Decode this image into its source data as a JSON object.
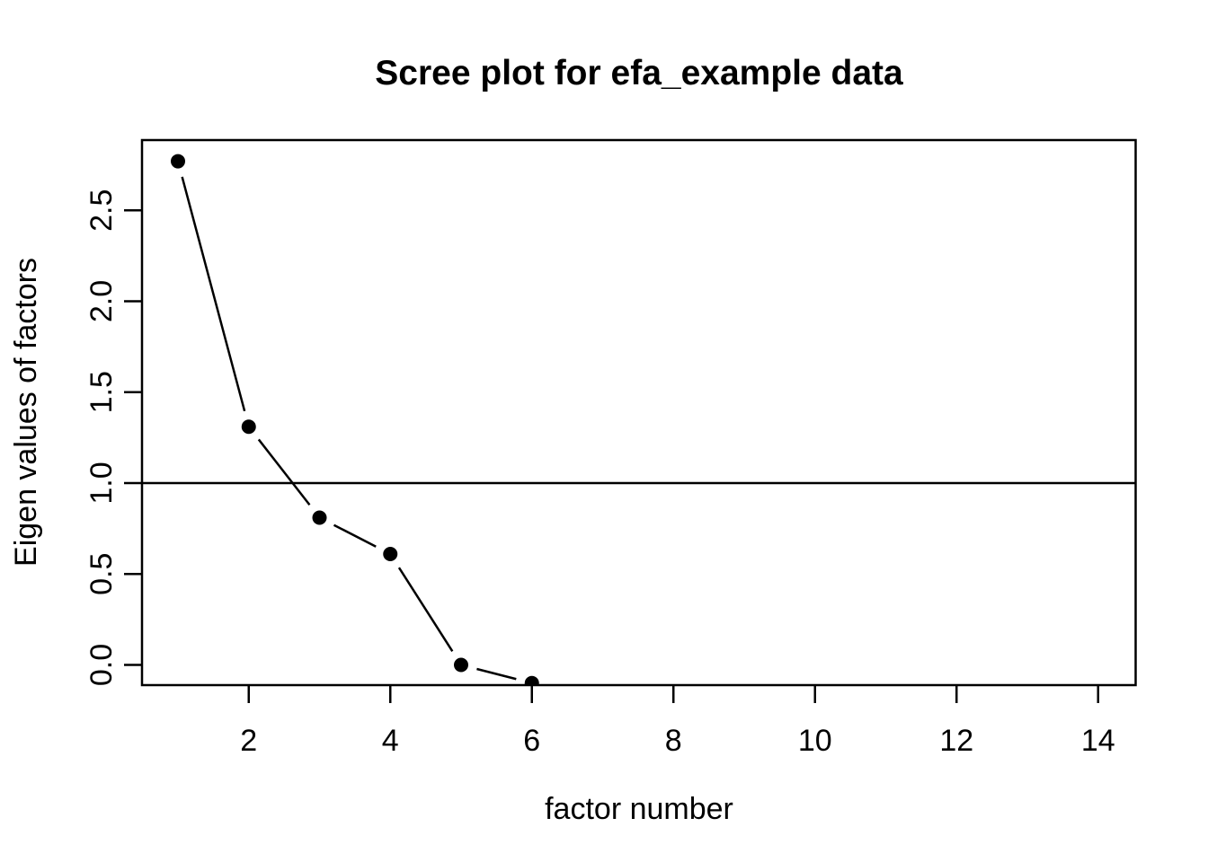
{
  "page": {
    "background_color": "#ffffff"
  },
  "chart_data": {
    "type": "line",
    "title": "Scree plot for efa_example data",
    "xlabel": "factor number",
    "ylabel": "Eigen values of factors",
    "series": [
      {
        "name": "eigenvalues",
        "marker": "filled-circle",
        "line_style": "segments-with-gaps-at-points",
        "points": [
          {
            "factor": 1,
            "eigenvalue": 2.77
          },
          {
            "factor": 2,
            "eigenvalue": 1.31
          },
          {
            "factor": 3,
            "eigenvalue": 0.81
          },
          {
            "factor": 4,
            "eigenvalue": 0.61
          },
          {
            "factor": 5,
            "eigenvalue": 0.0
          },
          {
            "factor": 6,
            "eigenvalue": -0.1
          }
        ]
      }
    ],
    "x_tick_labels": [
      "2",
      "4",
      "6",
      "8",
      "10",
      "12",
      "14"
    ],
    "x_tick_values": [
      2,
      4,
      6,
      8,
      10,
      12,
      14
    ],
    "y_tick_labels": [
      "0.0",
      "0.5",
      "1.0",
      "1.5",
      "2.0",
      "2.5"
    ],
    "y_tick_values": [
      0,
      0.5,
      1,
      1.5,
      2,
      2.5
    ],
    "xlim": [
      0.48,
      14.52
    ],
    "ylim": [
      -0.11,
      2.89
    ],
    "reference_line_y": 1.0,
    "grid": false,
    "legend_position": "none",
    "colors": {
      "foreground": "#000000",
      "background": "#ffffff"
    }
  }
}
